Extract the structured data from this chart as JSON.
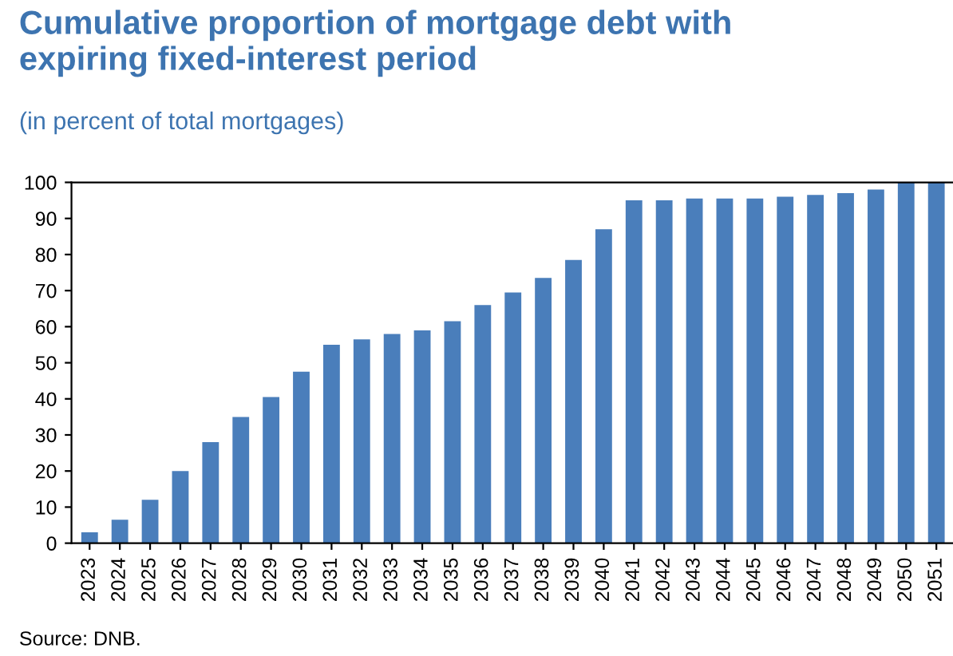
{
  "chart_data": {
    "type": "bar",
    "title": "Cumulative proportion of mortgage debt with\nexpiring fixed-interest period",
    "subtitle": "(in percent of total mortgages)",
    "categories": [
      "2023",
      "2024",
      "2025",
      "2026",
      "2027",
      "2028",
      "2029",
      "2030",
      "2031",
      "2032",
      "2033",
      "2034",
      "2035",
      "2036",
      "2037",
      "2038",
      "2039",
      "2040",
      "2041",
      "2042",
      "2043",
      "2044",
      "2045",
      "2046",
      "2047",
      "2048",
      "2049",
      "2050",
      "2051"
    ],
    "values": [
      3,
      6.5,
      12,
      20,
      28,
      35,
      40.5,
      47.5,
      55,
      56.5,
      58,
      59,
      61.5,
      66,
      69.5,
      73.5,
      78.5,
      87,
      95,
      95,
      95.5,
      95.5,
      95.5,
      96,
      96.5,
      97,
      98,
      100,
      100
    ],
    "color": "#4a7ebb",
    "ylim": [
      0,
      100
    ],
    "yticks": [
      0,
      10,
      20,
      30,
      40,
      50,
      60,
      70,
      80,
      90,
      100
    ],
    "grid": false,
    "annotations": [
      "Source: DNB."
    ]
  }
}
